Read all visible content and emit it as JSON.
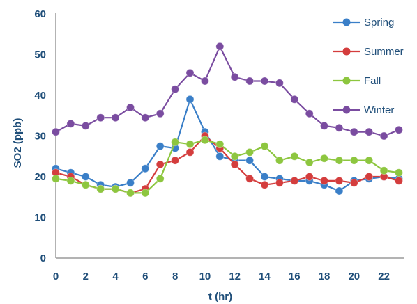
{
  "chart_data": {
    "type": "line",
    "title": "",
    "xlabel": "t  (hr)",
    "ylabel": "SO2  (ppb)",
    "xlim": [
      0,
      23
    ],
    "ylim": [
      0,
      60
    ],
    "x_ticks": [
      "0",
      "2",
      "4",
      "6",
      "8",
      "10",
      "12",
      "14",
      "16",
      "18",
      "20",
      "22"
    ],
    "y_ticks": [
      "0",
      "10",
      "20",
      "30",
      "40",
      "50",
      "60"
    ],
    "x_tick_values": [
      0,
      2,
      4,
      6,
      8,
      10,
      12,
      14,
      16,
      18,
      20,
      22
    ],
    "y_tick_values": [
      0,
      10,
      20,
      30,
      40,
      50,
      60
    ],
    "grid": false,
    "legend_position": "top-right",
    "x": [
      0,
      1,
      2,
      3,
      4,
      5,
      6,
      7,
      8,
      9,
      10,
      11,
      12,
      13,
      14,
      15,
      16,
      17,
      18,
      19,
      20,
      21,
      22,
      23
    ],
    "series": [
      {
        "name": "Spring",
        "color": "#3a7fc8",
        "values": [
          22,
          21,
          20,
          18,
          17.5,
          18.5,
          22,
          27.5,
          27,
          39,
          31,
          25,
          24,
          24,
          20,
          19.5,
          19,
          19,
          18,
          16.5,
          19,
          19.5,
          20,
          19.5
        ]
      },
      {
        "name": "Summer",
        "color": "#d43d3d",
        "values": [
          21,
          20,
          18,
          17,
          17,
          16,
          17,
          23,
          24,
          26,
          30,
          27,
          23,
          19.5,
          18,
          18.5,
          19,
          20,
          19,
          19,
          18.5,
          20,
          20,
          19
        ]
      },
      {
        "name": "Fall",
        "color": "#8dc63f",
        "values": [
          19.5,
          19,
          18,
          17,
          17,
          16,
          16,
          19.5,
          28.5,
          28,
          29,
          28,
          25,
          26,
          27.5,
          24,
          25,
          23.5,
          24.5,
          24,
          24,
          24,
          21.5,
          21
        ]
      },
      {
        "name": "Winter",
        "color": "#7a4ca0",
        "values": [
          31,
          33,
          32.5,
          34.5,
          34.5,
          37,
          34.5,
          35.5,
          41.5,
          45.5,
          43.5,
          52,
          44.5,
          43.5,
          43.5,
          43,
          39,
          35.5,
          32.5,
          32,
          31,
          31,
          30,
          31.5
        ]
      }
    ]
  }
}
